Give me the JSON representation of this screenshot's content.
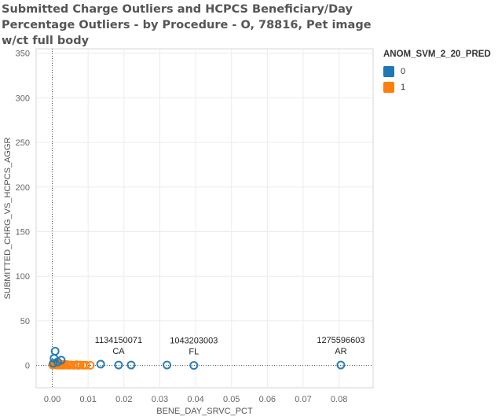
{
  "chart_data": {
    "type": "scatter",
    "title": "Submitted Charge Outliers and HCPCS Beneficiary/Day Percentage Outliers - by Procedure - O, 78816, Pet image w/ct full body",
    "xlabel": "BENE_DAY_SRVC_PCT",
    "ylabel": "SUBMITTED_CHRG_VS_HCPCS_AGGR",
    "xlim": [
      -0.0045,
      0.0895
    ],
    "ylim": [
      -25,
      355
    ],
    "xticks": [
      "0.00",
      "0.01",
      "0.02",
      "0.03",
      "0.04",
      "0.05",
      "0.06",
      "0.07",
      "0.08"
    ],
    "xtick_values": [
      0,
      0.01,
      0.02,
      0.03,
      0.04,
      0.05,
      0.06,
      0.07,
      0.08
    ],
    "yticks": [
      "0",
      "50",
      "100",
      "150",
      "200",
      "250",
      "300",
      "350"
    ],
    "ytick_values": [
      0,
      50,
      100,
      150,
      200,
      250,
      300,
      350
    ],
    "grid": true,
    "legend": {
      "title": "ANOM_SVM_2_20_PRED",
      "position": "top-right",
      "entries": [
        {
          "label": "0",
          "color": "#1f77b4"
        },
        {
          "label": "1",
          "color": "#ff7f0e"
        }
      ]
    },
    "series": [
      {
        "name": "0",
        "color": "#1f77b4",
        "points": [
          [
            0.0008,
            16
          ],
          [
            0.0005,
            8
          ],
          [
            0.0025,
            6
          ],
          [
            0.0015,
            4
          ],
          [
            0.0003,
            2.5
          ],
          [
            0.0135,
            1.5
          ],
          [
            0.0185,
            0.5
          ],
          [
            0.022,
            0.5
          ],
          [
            0.032,
            0.5
          ],
          [
            0.0395,
            0
          ],
          [
            0.0805,
            0.5
          ]
        ]
      },
      {
        "name": "1",
        "color": "#ff7f0e",
        "points": [
          [
            0.0001,
            0.5
          ],
          [
            0.0003,
            2
          ],
          [
            0.0006,
            1
          ],
          [
            0.0009,
            2.5
          ],
          [
            0.0012,
            0.5
          ],
          [
            0.0015,
            1.5
          ],
          [
            0.0018,
            0.3
          ],
          [
            0.0021,
            1.8
          ],
          [
            0.0024,
            0.8
          ],
          [
            0.0028,
            0.2
          ],
          [
            0.0032,
            1.2
          ],
          [
            0.0036,
            0.5
          ],
          [
            0.0041,
            1
          ],
          [
            0.0046,
            0.3
          ],
          [
            0.0052,
            0.6
          ],
          [
            0.006,
            0.2
          ],
          [
            0.0068,
            0.8
          ],
          [
            0.0072,
            0.1
          ],
          [
            0.0078,
            0.5
          ],
          [
            0.0086,
            0.2
          ],
          [
            0.0094,
            0.3
          ],
          [
            0.0106,
            0.1
          ]
        ]
      }
    ],
    "annotations": [
      {
        "x": 0.0185,
        "y": 0.5,
        "lines": [
          "1134150071",
          "CA"
        ]
      },
      {
        "x": 0.0395,
        "y": 0,
        "lines": [
          "1043203003",
          "FL"
        ]
      },
      {
        "x": 0.0805,
        "y": 0.5,
        "lines": [
          "1275596603",
          "AR"
        ]
      }
    ]
  }
}
